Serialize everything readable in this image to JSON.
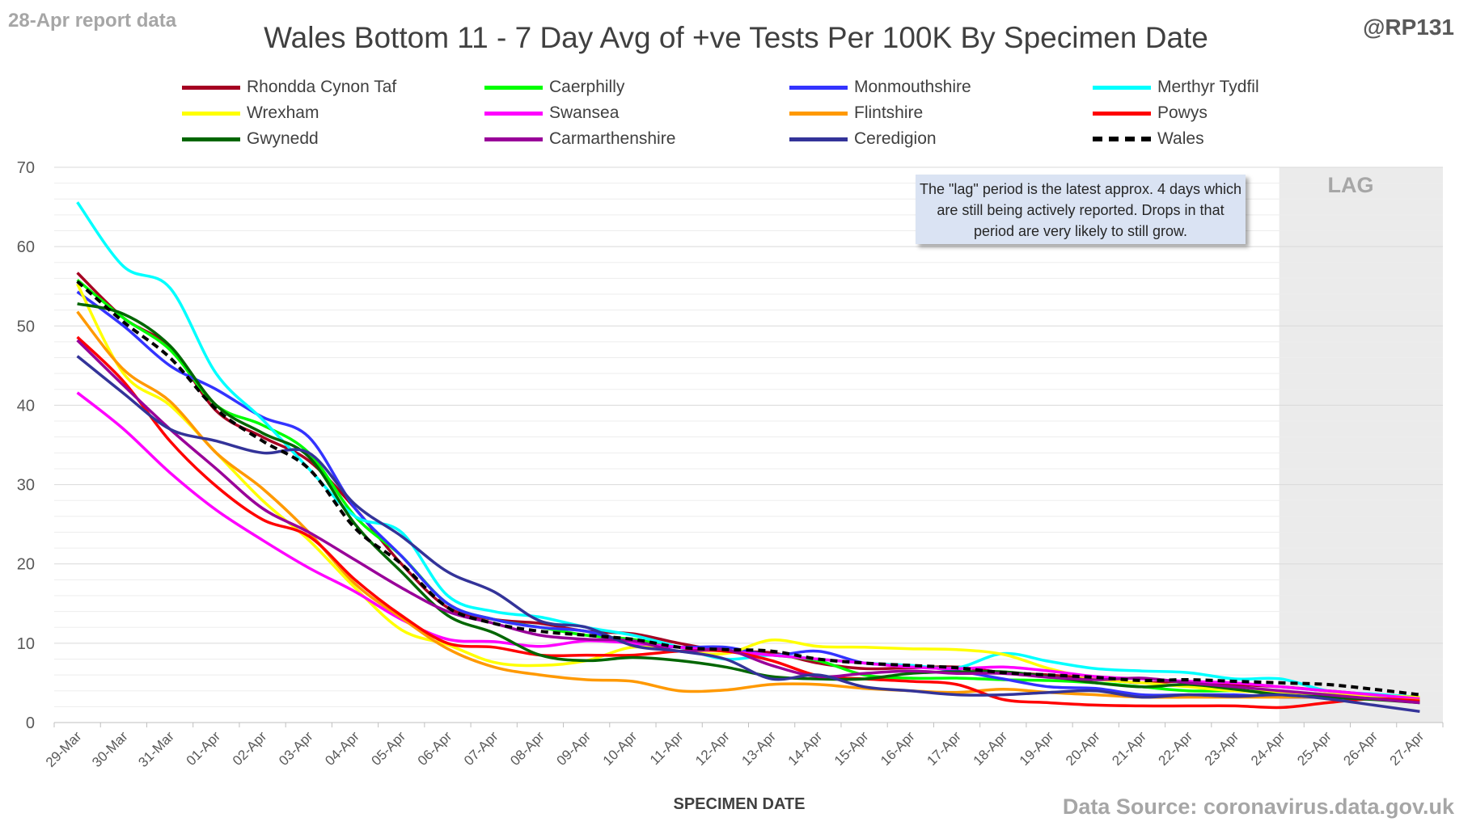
{
  "header": {
    "report_label": "28-Apr report data",
    "handle": "@RP131",
    "source": "Data Source: coronavirus.data.gov.uk"
  },
  "note": "The \"lag\" period is the latest approx. 4 days which are still being actively reported. Drops in that period are very likely to still grow.",
  "lag_label": "LAG",
  "chart_data": {
    "type": "line",
    "title": "Wales Bottom 11 - 7 Day Avg of +ve Tests Per 100K By Specimen Date",
    "xlabel": "SPECIMEN DATE",
    "ylabel": "",
    "ylim": [
      0,
      70
    ],
    "yticks": [
      0,
      10,
      20,
      30,
      40,
      50,
      60,
      70
    ],
    "grid": true,
    "legend_position": "top",
    "lag_region": [
      "24-Apr",
      "27-Apr"
    ],
    "categories": [
      "29-Mar",
      "30-Mar",
      "31-Mar",
      "01-Apr",
      "02-Apr",
      "03-Apr",
      "04-Apr",
      "05-Apr",
      "06-Apr",
      "07-Apr",
      "08-Apr",
      "09-Apr",
      "10-Apr",
      "11-Apr",
      "12-Apr",
      "13-Apr",
      "14-Apr",
      "15-Apr",
      "16-Apr",
      "17-Apr",
      "18-Apr",
      "19-Apr",
      "20-Apr",
      "21-Apr",
      "22-Apr",
      "23-Apr",
      "24-Apr",
      "25-Apr",
      "26-Apr",
      "27-Apr"
    ],
    "series": [
      {
        "name": "Rhondda Cynon Taf",
        "color": "#a50021",
        "dashed": false,
        "values": [
          56.7,
          51,
          47.3,
          39.3,
          36,
          33,
          27,
          20,
          14.5,
          13,
          12.5,
          11.5,
          11.2,
          10,
          9,
          8.8,
          7.5,
          6.8,
          6.9,
          7,
          6.3,
          6,
          5.5,
          5,
          5.2,
          4.8,
          4.5,
          4,
          3.5,
          3
        ]
      },
      {
        "name": "Caerphilly",
        "color": "#00ff00",
        "dashed": false,
        "values": [
          55.8,
          51,
          47,
          40,
          37.5,
          34,
          26,
          21,
          15,
          13,
          12,
          11,
          10.5,
          9.5,
          9,
          8.5,
          7.8,
          6,
          5.6,
          5.6,
          5.4,
          5.3,
          5,
          4.5,
          4,
          4,
          3.8,
          3.5,
          3.3,
          3.1
        ]
      },
      {
        "name": "Monmouthshire",
        "color": "#3333ff",
        "dashed": false,
        "values": [
          54.3,
          50,
          45,
          42,
          38.5,
          36,
          27,
          21,
          15,
          13,
          12,
          11.5,
          10,
          9.5,
          9.5,
          8.5,
          9,
          7.5,
          7.2,
          6.5,
          5.5,
          4.5,
          4.3,
          3.5,
          3.5,
          3.5,
          3.2,
          3.2,
          3,
          2.8
        ]
      },
      {
        "name": "Merthyr Tydfil",
        "color": "#00ffff",
        "dashed": false,
        "values": [
          65.6,
          57.5,
          54.8,
          44,
          38.2,
          32,
          26,
          24,
          16,
          14,
          13.3,
          12,
          11,
          9.5,
          8,
          8.5,
          8,
          7.5,
          7.2,
          6.9,
          8.7,
          7.7,
          6.8,
          6.5,
          6.3,
          5.5,
          5.5,
          4,
          3.6,
          3.2
        ]
      },
      {
        "name": "Wrexham",
        "color": "#ffff00",
        "dashed": false,
        "values": [
          55.3,
          44,
          40,
          34,
          28,
          23,
          17,
          11.7,
          9.8,
          7.6,
          7.2,
          7.8,
          9.5,
          9,
          8.7,
          10.4,
          9.6,
          9.5,
          9.3,
          9.2,
          8.6,
          6.8,
          5.5,
          5,
          4.5,
          4,
          3.8,
          3.6,
          3.4,
          3.2
        ]
      },
      {
        "name": "Swansea",
        "color": "#ff00ff",
        "dashed": false,
        "values": [
          41.6,
          37,
          31.5,
          26.8,
          23,
          19.5,
          16.5,
          13,
          10.5,
          10.2,
          9.6,
          10.3,
          10,
          9.5,
          9,
          8.5,
          8,
          7.5,
          7,
          6.8,
          7,
          6.5,
          5.8,
          5.5,
          5.2,
          5,
          4.5,
          4,
          3.5,
          3
        ]
      },
      {
        "name": "Flintshire",
        "color": "#ff9900",
        "dashed": false,
        "values": [
          51.8,
          44.5,
          40.5,
          34,
          29.5,
          24,
          17.5,
          13.2,
          9.3,
          7,
          6,
          5.4,
          5.2,
          4,
          4.1,
          4.8,
          4.8,
          4.3,
          4,
          3.8,
          4.2,
          3.8,
          3.5,
          3.2,
          3.2,
          3.2,
          3.2,
          3.2,
          3,
          2.8
        ]
      },
      {
        "name": "Powys",
        "color": "#ff0000",
        "dashed": false,
        "values": [
          48.6,
          43,
          35.5,
          29.8,
          25.6,
          23.5,
          18,
          13.5,
          10,
          9.5,
          8.5,
          8.5,
          8.5,
          9,
          9,
          7.8,
          5.9,
          5.5,
          5.2,
          4.8,
          2.9,
          2.5,
          2.2,
          2.1,
          2.1,
          2.1,
          1.9,
          2.5,
          3,
          2.7
        ]
      },
      {
        "name": "Gwynedd",
        "color": "#006600",
        "dashed": false,
        "values": [
          52.8,
          51.5,
          47.5,
          40,
          36.5,
          33.5,
          25,
          19,
          13.5,
          11.3,
          8.5,
          7.8,
          8.2,
          7.8,
          7,
          5.8,
          5.5,
          5.5,
          6.2,
          6.4,
          6.4,
          5.8,
          5,
          4.5,
          4.8,
          4.2,
          3.5,
          3.2,
          2.9,
          2.5
        ]
      },
      {
        "name": "Carmarthenshire",
        "color": "#990099",
        "dashed": false,
        "values": [
          48.2,
          42.5,
          37,
          32,
          27,
          24,
          20.5,
          17,
          14,
          12.5,
          11,
          10.5,
          10.3,
          9,
          9.2,
          7.2,
          5.8,
          6.2,
          6.5,
          6.2,
          6.2,
          5.7,
          5.4,
          5.6,
          5,
          4.5,
          4,
          3.5,
          3,
          2.5
        ]
      },
      {
        "name": "Ceredigion",
        "color": "#333399",
        "dashed": false,
        "values": [
          46.2,
          41.5,
          37,
          35.5,
          34,
          34,
          27.5,
          23.5,
          19,
          16.5,
          12.8,
          12,
          9.7,
          9,
          8,
          5.5,
          6,
          4.5,
          4,
          3.5,
          3.5,
          3.8,
          4,
          3.2,
          3.5,
          3.3,
          3.5,
          3,
          2.2,
          1.4
        ]
      },
      {
        "name": "Wales",
        "color": "#000000",
        "dashed": true,
        "values": [
          55.6,
          50.5,
          46,
          39.5,
          35.5,
          32,
          24.5,
          20,
          14.5,
          12.5,
          11.5,
          11,
          10.5,
          9.5,
          9.2,
          9,
          8,
          7.5,
          7.2,
          6.9,
          6.3,
          6,
          5.7,
          5.3,
          5.4,
          5.2,
          5,
          4.8,
          4.2,
          3.5
        ]
      }
    ]
  }
}
